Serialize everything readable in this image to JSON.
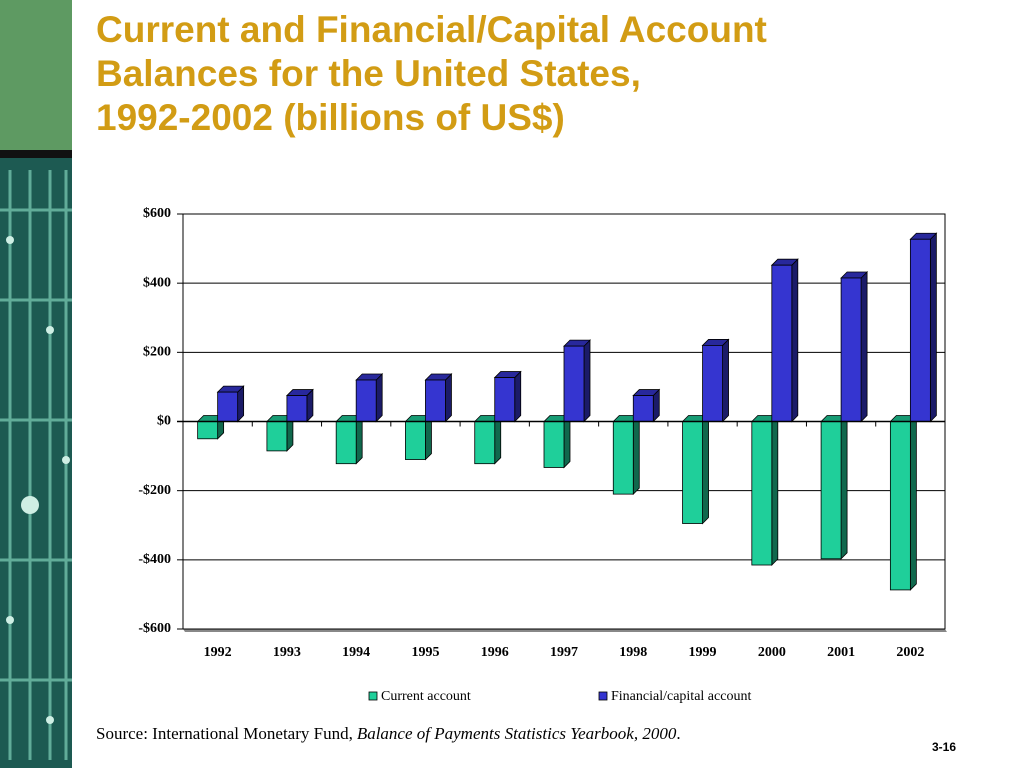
{
  "chart_data": {
    "type": "bar3d",
    "title": [
      "Current and Financial/Capital Account",
      "Balances for the United States,",
      "1992-2002 (billions of US$)"
    ],
    "categories": [
      "1992",
      "1993",
      "1994",
      "1995",
      "1996",
      "1997",
      "1998",
      "1999",
      "2000",
      "2001",
      "2002"
    ],
    "series": [
      {
        "name": "Current account",
        "color": "#1fcf9a",
        "values": [
          -50,
          -85,
          -122,
          -110,
          -122,
          -133,
          -210,
          -295,
          -415,
          -397,
          -487
        ]
      },
      {
        "name": "Financial/capital account",
        "color": "#3535d0",
        "values": [
          85,
          75,
          120,
          120,
          127,
          218,
          75,
          220,
          452,
          415,
          527
        ]
      }
    ],
    "ylim": [
      -600,
      600
    ],
    "yticks": [
      {
        "value": -600,
        "label": "-$600"
      },
      {
        "value": -400,
        "label": "-$400"
      },
      {
        "value": -200,
        "label": "-$200"
      },
      {
        "value": 0,
        "label": "$0"
      },
      {
        "value": 200,
        "label": "$200"
      },
      {
        "value": 400,
        "label": "$400"
      },
      {
        "value": 600,
        "label": "$600"
      }
    ],
    "grid": true,
    "source": {
      "text": "Source: International Monetary Fund,",
      "title": "Balance of Payments Statistics Yearbook, 2000",
      "end": "."
    }
  },
  "page_number": "3-16"
}
